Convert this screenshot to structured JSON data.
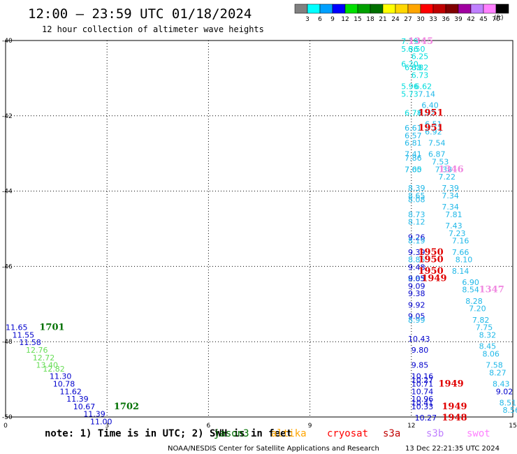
{
  "header": {
    "title": "12:00 – 23:59 UTC 01/18/2024",
    "subtitle": "12 hour collection of altimeter wave heights"
  },
  "colorbar": {
    "labels": [
      "3",
      "6",
      "9",
      "12",
      "15",
      "18",
      "21",
      "24",
      "27",
      "30",
      "33",
      "36",
      "39",
      "42",
      "45",
      "70"
    ],
    "unit": "(ft)",
    "colors": [
      "#808080",
      "#00ffff",
      "#00a0ff",
      "#0000ff",
      "#00e000",
      "#00a000",
      "#007000",
      "#ffff00",
      "#ffd700",
      "#ffa500",
      "#ff0000",
      "#c00000",
      "#800000",
      "#a000a0",
      "#c080ff",
      "#ff80ff",
      "#000000"
    ]
  },
  "footer": {
    "note": "note:  1) Time is in UTC; 2) SWH is in feet",
    "credit": "NOAA/NESDIS Center for Satellite Applications and Research",
    "timestamp": "13 Dec 22:21:35 UTC 2024"
  },
  "satellites": [
    {
      "name": "jason3",
      "color": "#007000"
    },
    {
      "name": "altika",
      "color": "#ffa500"
    },
    {
      "name": "cryosat",
      "color": "#ff0000"
    },
    {
      "name": "s3a",
      "color": "#c00000"
    },
    {
      "name": "s3b",
      "color": "#c080ff"
    },
    {
      "name": "swot",
      "color": "#ff80ff"
    }
  ],
  "chart_data": {
    "type": "scatter",
    "title": "12:00 – 23:59 UTC 01/18/2024",
    "subtitle": "12 hour collection of altimeter wave heights",
    "xlim": [
      0,
      15
    ],
    "ylim": [
      -50,
      -40
    ],
    "x_ticks": [
      "0",
      "3",
      "6",
      "9",
      "12",
      "15"
    ],
    "y_ticks": [
      "-40",
      "-42",
      "-44",
      "-46",
      "-48",
      "-50"
    ],
    "grid": true,
    "units": "ft",
    "colors": {
      "lightblue": "#20b8e8",
      "cyan": "#00dcdc",
      "blue": "#0000cc",
      "lightgreen": "#66dd55",
      "green": "#007000",
      "red": "#e00000",
      "magenta": "#f088e0"
    },
    "points": [
      {
        "x": 11.7,
        "y": -40.0,
        "v": "7.19",
        "c": "cyan"
      },
      {
        "x": 11.7,
        "y": -40.2,
        "v": "5.36",
        "c": "cyan"
      },
      {
        "x": 11.9,
        "y": -40.2,
        "v": "6.50",
        "c": "cyan"
      },
      {
        "x": 12.0,
        "y": -40.4,
        "v": "6.25",
        "c": "cyan"
      },
      {
        "x": 11.7,
        "y": -40.6,
        "v": "6.20",
        "c": "cyan"
      },
      {
        "x": 11.8,
        "y": -40.7,
        "v": "6.38",
        "c": "cyan"
      },
      {
        "x": 12.0,
        "y": -40.7,
        "v": "6.82",
        "c": "cyan"
      },
      {
        "x": 12.0,
        "y": -40.9,
        "v": "6.73",
        "c": "cyan"
      },
      {
        "x": 11.7,
        "y": -41.2,
        "v": "5.96",
        "c": "cyan"
      },
      {
        "x": 12.1,
        "y": -41.2,
        "v": "6.62",
        "c": "cyan"
      },
      {
        "x": 11.7,
        "y": -41.4,
        "v": "5.73",
        "c": "cyan"
      },
      {
        "x": 12.2,
        "y": -41.4,
        "v": "7.14",
        "c": "lightblue"
      },
      {
        "x": 12.3,
        "y": -41.7,
        "v": "6.40",
        "c": "lightblue"
      },
      {
        "x": 11.8,
        "y": -41.9,
        "v": "6.78",
        "c": "cyan"
      },
      {
        "x": 12.2,
        "y": -41.9,
        "v": "6.72",
        "c": "lightblue"
      },
      {
        "x": 12.4,
        "y": -42.2,
        "v": "6.51",
        "c": "lightblue"
      },
      {
        "x": 11.8,
        "y": -42.3,
        "v": "6.61",
        "c": "lightblue"
      },
      {
        "x": 11.8,
        "y": -42.5,
        "v": "6.57",
        "c": "lightblue"
      },
      {
        "x": 12.4,
        "y": -42.4,
        "v": "6.92",
        "c": "lightblue"
      },
      {
        "x": 11.8,
        "y": -42.7,
        "v": "6.81",
        "c": "lightblue"
      },
      {
        "x": 12.5,
        "y": -42.7,
        "v": "7.54",
        "c": "lightblue"
      },
      {
        "x": 11.8,
        "y": -43.0,
        "v": "7.41",
        "c": "lightblue"
      },
      {
        "x": 12.5,
        "y": -43.0,
        "v": "6.87",
        "c": "lightblue"
      },
      {
        "x": 11.8,
        "y": -43.1,
        "v": "7.86",
        "c": "lightblue"
      },
      {
        "x": 12.6,
        "y": -43.2,
        "v": "7.53",
        "c": "lightblue"
      },
      {
        "x": 11.8,
        "y": -43.4,
        "v": "7.00",
        "c": "cyan"
      },
      {
        "x": 11.8,
        "y": -43.4,
        "v": "7.65",
        "c": "lightblue"
      },
      {
        "x": 12.7,
        "y": -43.4,
        "v": "7.38",
        "c": "lightblue"
      },
      {
        "x": 12.8,
        "y": -43.6,
        "v": "7.22",
        "c": "lightblue"
      },
      {
        "x": 11.9,
        "y": -43.9,
        "v": "8.39",
        "c": "lightblue"
      },
      {
        "x": 12.9,
        "y": -43.9,
        "v": "7.39",
        "c": "lightblue"
      },
      {
        "x": 11.9,
        "y": -44.1,
        "v": "8.65",
        "c": "lightblue"
      },
      {
        "x": 12.9,
        "y": -44.1,
        "v": "7.34",
        "c": "lightblue"
      },
      {
        "x": 11.9,
        "y": -44.2,
        "v": "8.08",
        "c": "lightblue"
      },
      {
        "x": 12.9,
        "y": -44.4,
        "v": "7.34",
        "c": "lightblue"
      },
      {
        "x": 11.9,
        "y": -44.6,
        "v": "8.73",
        "c": "lightblue"
      },
      {
        "x": 13.0,
        "y": -44.6,
        "v": "7.81",
        "c": "lightblue"
      },
      {
        "x": 11.9,
        "y": -44.8,
        "v": "8.12",
        "c": "lightblue"
      },
      {
        "x": 13.0,
        "y": -44.9,
        "v": "7.43",
        "c": "lightblue"
      },
      {
        "x": 13.1,
        "y": -45.1,
        "v": "7.23",
        "c": "lightblue"
      },
      {
        "x": 11.9,
        "y": -45.2,
        "v": "9.26",
        "c": "blue"
      },
      {
        "x": 11.9,
        "y": -45.3,
        "v": "8.19",
        "c": "lightblue"
      },
      {
        "x": 13.2,
        "y": -45.3,
        "v": "7.16",
        "c": "lightblue"
      },
      {
        "x": 11.9,
        "y": -45.6,
        "v": "9.39",
        "c": "blue"
      },
      {
        "x": 13.2,
        "y": -45.6,
        "v": "7.66",
        "c": "lightblue"
      },
      {
        "x": 11.9,
        "y": -45.8,
        "v": "8.85",
        "c": "lightblue"
      },
      {
        "x": 13.3,
        "y": -45.8,
        "v": "8.10",
        "c": "lightblue"
      },
      {
        "x": 11.9,
        "y": -46.0,
        "v": "9.48",
        "c": "blue"
      },
      {
        "x": 13.2,
        "y": -46.1,
        "v": "8.14",
        "c": "lightblue"
      },
      {
        "x": 11.9,
        "y": -46.3,
        "v": "8.83",
        "c": "lightblue"
      },
      {
        "x": 11.9,
        "y": -46.3,
        "v": "9.05",
        "c": "blue"
      },
      {
        "x": 13.5,
        "y": -46.4,
        "v": "6.90",
        "c": "lightblue"
      },
      {
        "x": 11.9,
        "y": -46.5,
        "v": "9.09",
        "c": "blue"
      },
      {
        "x": 13.5,
        "y": -46.6,
        "v": "8.54",
        "c": "lightblue"
      },
      {
        "x": 11.9,
        "y": -46.7,
        "v": "9.38",
        "c": "blue"
      },
      {
        "x": 13.6,
        "y": -46.9,
        "v": "8.28",
        "c": "lightblue"
      },
      {
        "x": 11.9,
        "y": -47.0,
        "v": "9.92",
        "c": "blue"
      },
      {
        "x": 13.7,
        "y": -47.1,
        "v": "7.20",
        "c": "lightblue"
      },
      {
        "x": 11.9,
        "y": -47.3,
        "v": "9.05",
        "c": "blue"
      },
      {
        "x": 11.9,
        "y": -47.4,
        "v": "8.99",
        "c": "lightblue"
      },
      {
        "x": 13.8,
        "y": -47.4,
        "v": "7.82",
        "c": "lightblue"
      },
      {
        "x": 13.9,
        "y": -47.6,
        "v": "7.75",
        "c": "lightblue"
      },
      {
        "x": 11.9,
        "y": -47.9,
        "v": "10.43",
        "c": "blue"
      },
      {
        "x": 14.0,
        "y": -47.8,
        "v": "8.32",
        "c": "lightblue"
      },
      {
        "x": 14.0,
        "y": -48.1,
        "v": "8.45",
        "c": "lightblue"
      },
      {
        "x": 12.0,
        "y": -48.2,
        "v": "9.80",
        "c": "blue"
      },
      {
        "x": 14.1,
        "y": -48.3,
        "v": "8.06",
        "c": "lightblue"
      },
      {
        "x": 12.0,
        "y": -48.6,
        "v": "9.85",
        "c": "blue"
      },
      {
        "x": 14.2,
        "y": -48.6,
        "v": "7.58",
        "c": "lightblue"
      },
      {
        "x": 14.3,
        "y": -48.8,
        "v": "8.27",
        "c": "lightblue"
      },
      {
        "x": 12.0,
        "y": -48.9,
        "v": "10.16",
        "c": "blue"
      },
      {
        "x": 12.0,
        "y": -49.0,
        "v": "10.27",
        "c": "blue"
      },
      {
        "x": 12.0,
        "y": -49.1,
        "v": "10.71",
        "c": "blue"
      },
      {
        "x": 14.4,
        "y": -49.1,
        "v": "8.43",
        "c": "lightblue"
      },
      {
        "x": 12.0,
        "y": -49.3,
        "v": "10.74",
        "c": "blue"
      },
      {
        "x": 14.5,
        "y": -49.3,
        "v": "9.02",
        "c": "blue"
      },
      {
        "x": 12.0,
        "y": -49.5,
        "v": "10.96",
        "c": "blue"
      },
      {
        "x": 12.0,
        "y": -49.6,
        "v": "10.41",
        "c": "blue"
      },
      {
        "x": 14.6,
        "y": -49.6,
        "v": "8.51",
        "c": "lightblue"
      },
      {
        "x": 12.0,
        "y": -49.7,
        "v": "10.33",
        "c": "blue"
      },
      {
        "x": 14.7,
        "y": -49.8,
        "v": "8.56",
        "c": "lightblue"
      },
      {
        "x": 12.1,
        "y": -50.0,
        "v": "10.27",
        "c": "blue"
      },
      {
        "x": 0.0,
        "y": -47.6,
        "v": "11.65",
        "c": "blue"
      },
      {
        "x": 0.2,
        "y": -47.8,
        "v": "11.55",
        "c": "blue"
      },
      {
        "x": 0.4,
        "y": -48.0,
        "v": "11.58",
        "c": "blue"
      },
      {
        "x": 0.6,
        "y": -48.2,
        "v": "12.76",
        "c": "lightgreen"
      },
      {
        "x": 0.8,
        "y": -48.4,
        "v": "12.72",
        "c": "lightgreen"
      },
      {
        "x": 0.9,
        "y": -48.6,
        "v": "13.40",
        "c": "lightgreen"
      },
      {
        "x": 1.1,
        "y": -48.7,
        "v": "12.82",
        "c": "lightgreen"
      },
      {
        "x": 1.3,
        "y": -48.9,
        "v": "11.30",
        "c": "blue"
      },
      {
        "x": 1.4,
        "y": -49.1,
        "v": "10.78",
        "c": "blue"
      },
      {
        "x": 1.6,
        "y": -49.3,
        "v": "11.62",
        "c": "blue"
      },
      {
        "x": 1.8,
        "y": -49.5,
        "v": "11.39",
        "c": "blue"
      },
      {
        "x": 2.0,
        "y": -49.7,
        "v": "10.67",
        "c": "blue"
      },
      {
        "x": 2.3,
        "y": -49.9,
        "v": "11.39",
        "c": "blue"
      },
      {
        "x": 2.5,
        "y": -50.1,
        "v": "11.00",
        "c": "blue"
      }
    ],
    "times": [
      {
        "x": 11.9,
        "y": -40.0,
        "t": "1345",
        "c": "magenta"
      },
      {
        "x": 12.2,
        "y": -41.9,
        "t": "1951",
        "c": "red"
      },
      {
        "x": 12.2,
        "y": -42.3,
        "t": "1951",
        "c": "red"
      },
      {
        "x": 12.8,
        "y": -43.4,
        "t": "1346",
        "c": "magenta"
      },
      {
        "x": 12.2,
        "y": -45.6,
        "t": "1950",
        "c": "red"
      },
      {
        "x": 12.2,
        "y": -45.8,
        "t": "1950",
        "c": "red"
      },
      {
        "x": 12.2,
        "y": -46.1,
        "t": "1950",
        "c": "red"
      },
      {
        "x": 12.3,
        "y": -46.3,
        "t": "1949",
        "c": "red"
      },
      {
        "x": 14.0,
        "y": -46.6,
        "t": "1347",
        "c": "magenta"
      },
      {
        "x": 12.8,
        "y": -49.1,
        "t": "1949",
        "c": "red"
      },
      {
        "x": 12.9,
        "y": -49.7,
        "t": "1949",
        "c": "red"
      },
      {
        "x": 12.9,
        "y": -50.0,
        "t": "1948",
        "c": "red"
      },
      {
        "x": 1.0,
        "y": -47.6,
        "t": "1701",
        "c": "green"
      },
      {
        "x": 3.2,
        "y": -49.7,
        "t": "1702",
        "c": "green"
      }
    ]
  }
}
